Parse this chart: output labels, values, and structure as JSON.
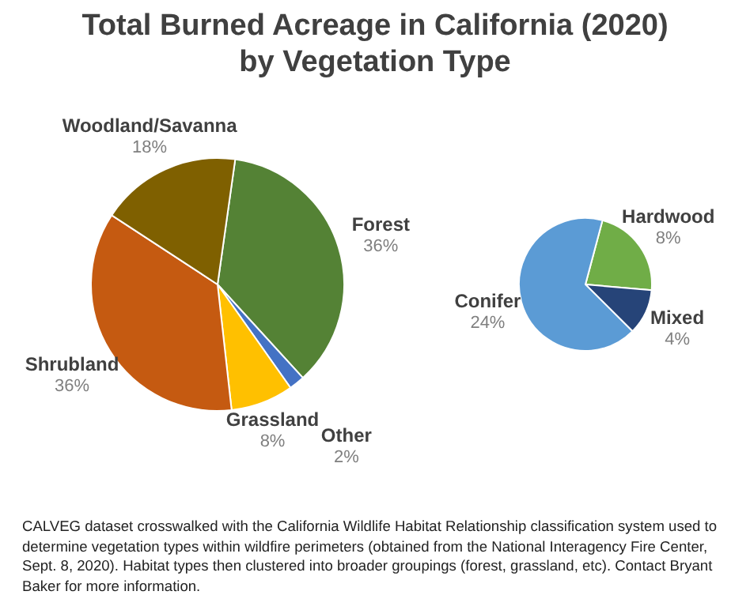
{
  "chart_data": [
    {
      "type": "pie",
      "title": "Total Burned Acreage in California (2020)\nby Vegetation Type",
      "categories": [
        "Forest",
        "Other",
        "Grassland",
        "Shrubland",
        "Woodland/Savanna"
      ],
      "values": [
        36,
        2,
        8,
        36,
        18
      ],
      "colors": [
        "#548235",
        "#4472c4",
        "#ffc000",
        "#c55a11",
        "#7f6000"
      ],
      "value_labels": [
        "36%",
        "2%",
        "8%",
        "36%",
        "18%"
      ],
      "annotations": [
        "CALVEG dataset crosswalked with the California Wildlife Habitat Relationship classification system used to determine vegetation types within wildfire perimeters (obtained from the National Interagency Fire Center, Sept. 8, 2020). Habitat types then clustered into broader groupings (forest, grassland, etc). Contact Bryant Baker for more information."
      ]
    },
    {
      "type": "pie",
      "categories": [
        "Hardwood",
        "Mixed",
        "Conifer"
      ],
      "values": [
        8,
        4,
        24
      ],
      "colors": [
        "#70ad47",
        "#264478",
        "#5b9bd5"
      ],
      "value_labels": [
        "8%",
        "4%",
        "24%"
      ]
    }
  ]
}
